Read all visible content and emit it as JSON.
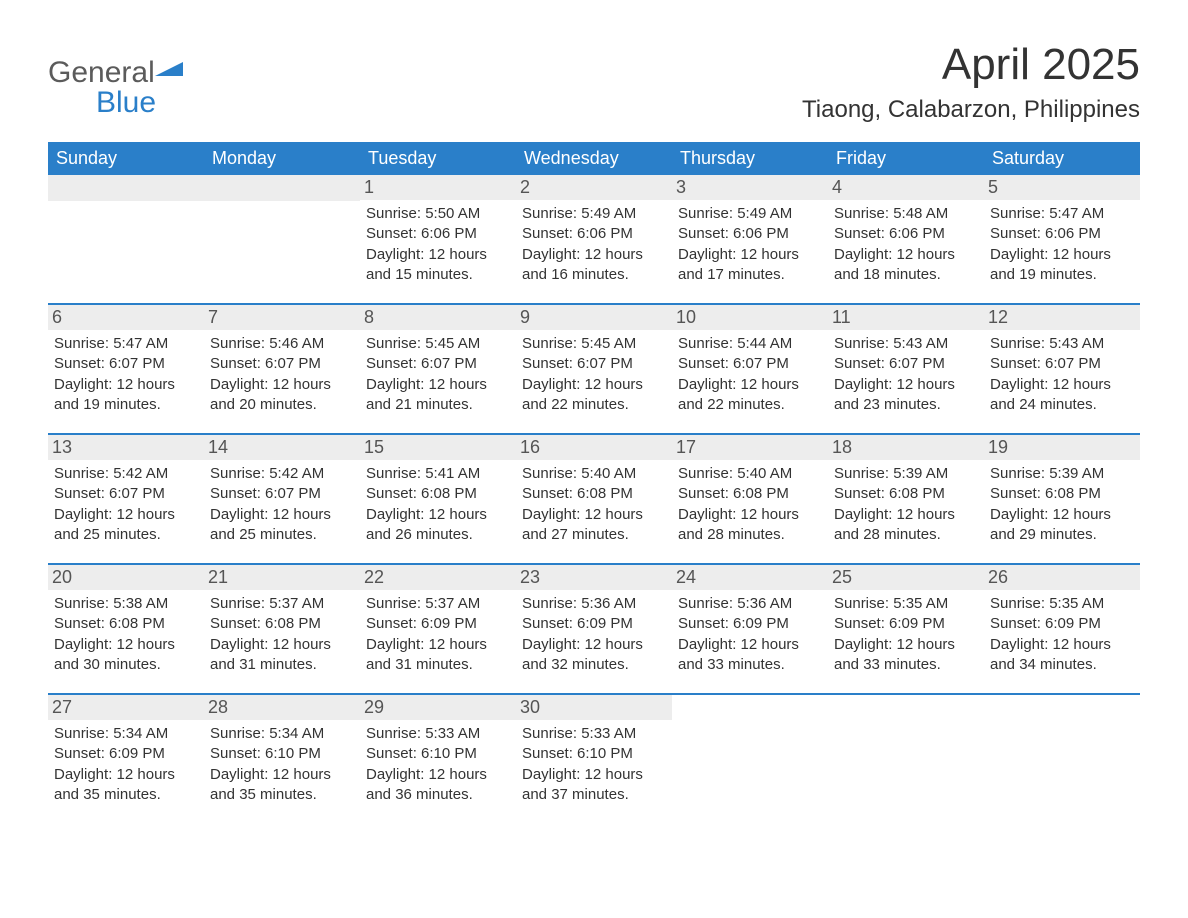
{
  "brand": {
    "word1": "General",
    "word2": "Blue",
    "word1_color": "#5b5b5b",
    "word2_color": "#2a7fc9",
    "flag_color": "#2a7fc9"
  },
  "title": "April 2025",
  "location": "Tiaong, Calabarzon, Philippines",
  "colors": {
    "header_bg": "#2a7fc9",
    "header_text": "#ffffff",
    "row_divider": "#2a7fc9",
    "daynum_bg": "#ededed",
    "daynum_text": "#555555",
    "body_text": "#333333",
    "page_bg": "#ffffff"
  },
  "font": {
    "family": "Arial",
    "title_size_pt": 33,
    "location_size_pt": 18,
    "header_size_pt": 14,
    "daynum_size_pt": 14,
    "body_size_pt": 11
  },
  "weekdays": [
    "Sunday",
    "Monday",
    "Tuesday",
    "Wednesday",
    "Thursday",
    "Friday",
    "Saturday"
  ],
  "labels": {
    "sunrise": "Sunrise",
    "sunset": "Sunset",
    "daylight": "Daylight"
  },
  "weeks": [
    [
      null,
      null,
      {
        "day": "1",
        "sunrise": "5:50 AM",
        "sunset": "6:06 PM",
        "daylight_hours": 12,
        "daylight_minutes": 15
      },
      {
        "day": "2",
        "sunrise": "5:49 AM",
        "sunset": "6:06 PM",
        "daylight_hours": 12,
        "daylight_minutes": 16
      },
      {
        "day": "3",
        "sunrise": "5:49 AM",
        "sunset": "6:06 PM",
        "daylight_hours": 12,
        "daylight_minutes": 17
      },
      {
        "day": "4",
        "sunrise": "5:48 AM",
        "sunset": "6:06 PM",
        "daylight_hours": 12,
        "daylight_minutes": 18
      },
      {
        "day": "5",
        "sunrise": "5:47 AM",
        "sunset": "6:06 PM",
        "daylight_hours": 12,
        "daylight_minutes": 19
      }
    ],
    [
      {
        "day": "6",
        "sunrise": "5:47 AM",
        "sunset": "6:07 PM",
        "daylight_hours": 12,
        "daylight_minutes": 19
      },
      {
        "day": "7",
        "sunrise": "5:46 AM",
        "sunset": "6:07 PM",
        "daylight_hours": 12,
        "daylight_minutes": 20
      },
      {
        "day": "8",
        "sunrise": "5:45 AM",
        "sunset": "6:07 PM",
        "daylight_hours": 12,
        "daylight_minutes": 21
      },
      {
        "day": "9",
        "sunrise": "5:45 AM",
        "sunset": "6:07 PM",
        "daylight_hours": 12,
        "daylight_minutes": 22
      },
      {
        "day": "10",
        "sunrise": "5:44 AM",
        "sunset": "6:07 PM",
        "daylight_hours": 12,
        "daylight_minutes": 22
      },
      {
        "day": "11",
        "sunrise": "5:43 AM",
        "sunset": "6:07 PM",
        "daylight_hours": 12,
        "daylight_minutes": 23
      },
      {
        "day": "12",
        "sunrise": "5:43 AM",
        "sunset": "6:07 PM",
        "daylight_hours": 12,
        "daylight_minutes": 24
      }
    ],
    [
      {
        "day": "13",
        "sunrise": "5:42 AM",
        "sunset": "6:07 PM",
        "daylight_hours": 12,
        "daylight_minutes": 25
      },
      {
        "day": "14",
        "sunrise": "5:42 AM",
        "sunset": "6:07 PM",
        "daylight_hours": 12,
        "daylight_minutes": 25
      },
      {
        "day": "15",
        "sunrise": "5:41 AM",
        "sunset": "6:08 PM",
        "daylight_hours": 12,
        "daylight_minutes": 26
      },
      {
        "day": "16",
        "sunrise": "5:40 AM",
        "sunset": "6:08 PM",
        "daylight_hours": 12,
        "daylight_minutes": 27
      },
      {
        "day": "17",
        "sunrise": "5:40 AM",
        "sunset": "6:08 PM",
        "daylight_hours": 12,
        "daylight_minutes": 28
      },
      {
        "day": "18",
        "sunrise": "5:39 AM",
        "sunset": "6:08 PM",
        "daylight_hours": 12,
        "daylight_minutes": 28
      },
      {
        "day": "19",
        "sunrise": "5:39 AM",
        "sunset": "6:08 PM",
        "daylight_hours": 12,
        "daylight_minutes": 29
      }
    ],
    [
      {
        "day": "20",
        "sunrise": "5:38 AM",
        "sunset": "6:08 PM",
        "daylight_hours": 12,
        "daylight_minutes": 30
      },
      {
        "day": "21",
        "sunrise": "5:37 AM",
        "sunset": "6:08 PM",
        "daylight_hours": 12,
        "daylight_minutes": 31
      },
      {
        "day": "22",
        "sunrise": "5:37 AM",
        "sunset": "6:09 PM",
        "daylight_hours": 12,
        "daylight_minutes": 31
      },
      {
        "day": "23",
        "sunrise": "5:36 AM",
        "sunset": "6:09 PM",
        "daylight_hours": 12,
        "daylight_minutes": 32
      },
      {
        "day": "24",
        "sunrise": "5:36 AM",
        "sunset": "6:09 PM",
        "daylight_hours": 12,
        "daylight_minutes": 33
      },
      {
        "day": "25",
        "sunrise": "5:35 AM",
        "sunset": "6:09 PM",
        "daylight_hours": 12,
        "daylight_minutes": 33
      },
      {
        "day": "26",
        "sunrise": "5:35 AM",
        "sunset": "6:09 PM",
        "daylight_hours": 12,
        "daylight_minutes": 34
      }
    ],
    [
      {
        "day": "27",
        "sunrise": "5:34 AM",
        "sunset": "6:09 PM",
        "daylight_hours": 12,
        "daylight_minutes": 35
      },
      {
        "day": "28",
        "sunrise": "5:34 AM",
        "sunset": "6:10 PM",
        "daylight_hours": 12,
        "daylight_minutes": 35
      },
      {
        "day": "29",
        "sunrise": "5:33 AM",
        "sunset": "6:10 PM",
        "daylight_hours": 12,
        "daylight_minutes": 36
      },
      {
        "day": "30",
        "sunrise": "5:33 AM",
        "sunset": "6:10 PM",
        "daylight_hours": 12,
        "daylight_minutes": 37
      },
      null,
      null,
      null
    ]
  ]
}
